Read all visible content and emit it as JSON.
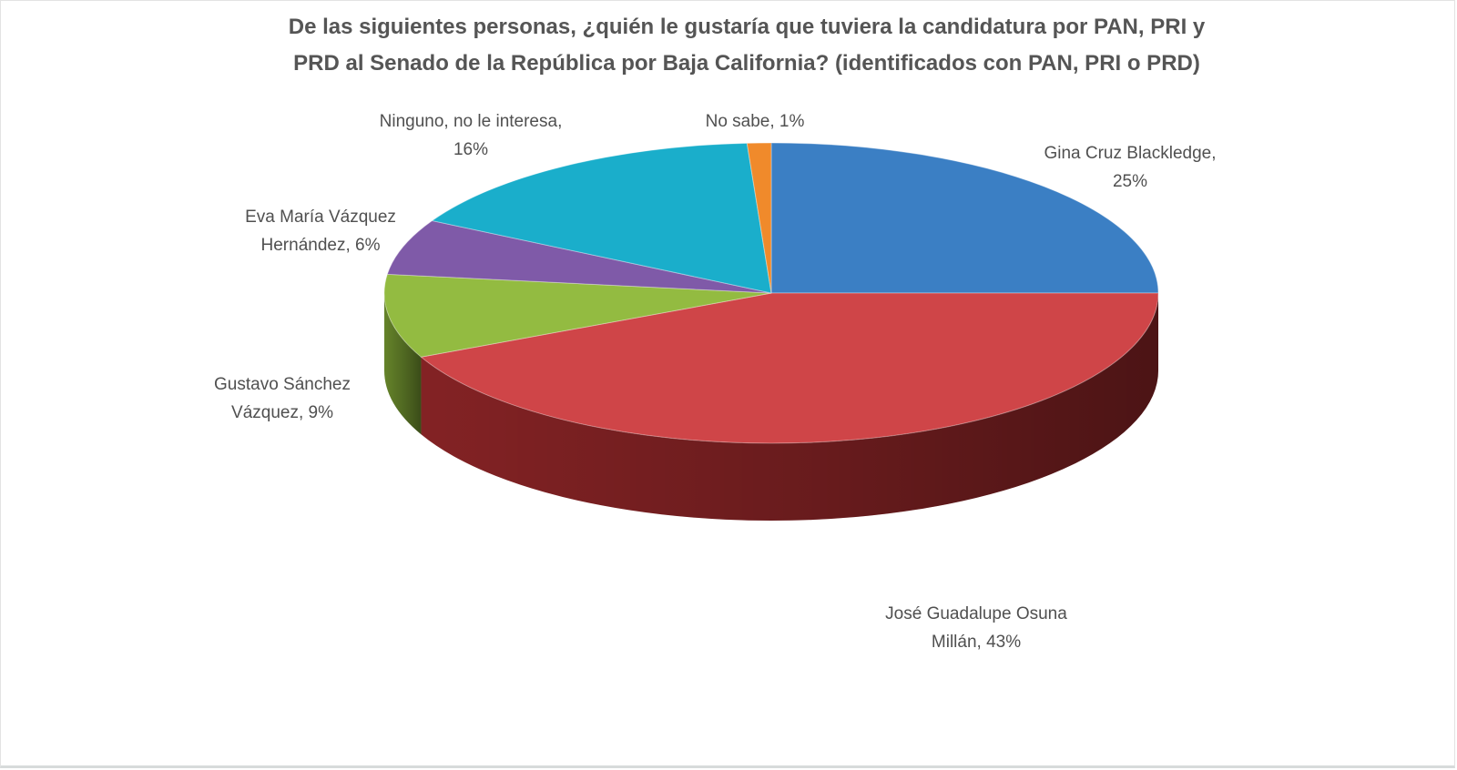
{
  "chart_data": {
    "type": "pie",
    "title_lines": [
      "De las siguientes personas, ¿quién le gustaría que tuviera la candidatura por PAN, PRI y",
      "PRD al Senado de la República por Baja California? (identificados con PAN, PRI o PRD)"
    ],
    "slices": [
      {
        "label_lines": [
          "Gina Cruz Blackledge,",
          "25%"
        ],
        "name": "Gina Cruz Blackledge",
        "value": 25,
        "color": "#3b7fc4",
        "side": "#2c5f94"
      },
      {
        "label_lines": [
          "José Guadalupe Osuna",
          "Millán, 43%"
        ],
        "name": "José Guadalupe Osuna Millán",
        "value": 43,
        "color": "#cf4548",
        "side": "#8a2426"
      },
      {
        "label_lines": [
          "Gustavo Sánchez",
          "Vázquez, 9%"
        ],
        "name": "Gustavo Sánchez Vázquez",
        "value": 9,
        "color": "#93bb41",
        "side": "#6a8a2c"
      },
      {
        "label_lines": [
          "Eva María Vázquez",
          "Hernández, 6%"
        ],
        "name": "Eva María Vázquez Hernández",
        "value": 6,
        "color": "#7f5aa8",
        "side": "#5c3f7c"
      },
      {
        "label_lines": [
          "Ninguno, no le interesa,",
          "16%"
        ],
        "name": "Ninguno, no le interesa",
        "value": 16,
        "color": "#1aaecb",
        "side": "#13839a"
      },
      {
        "label_lines": [
          "No sabe, 1%"
        ],
        "name": "No sabe",
        "value": 1,
        "color": "#f08a2b",
        "side": "#b8661c"
      }
    ],
    "label_placement": "outside"
  }
}
